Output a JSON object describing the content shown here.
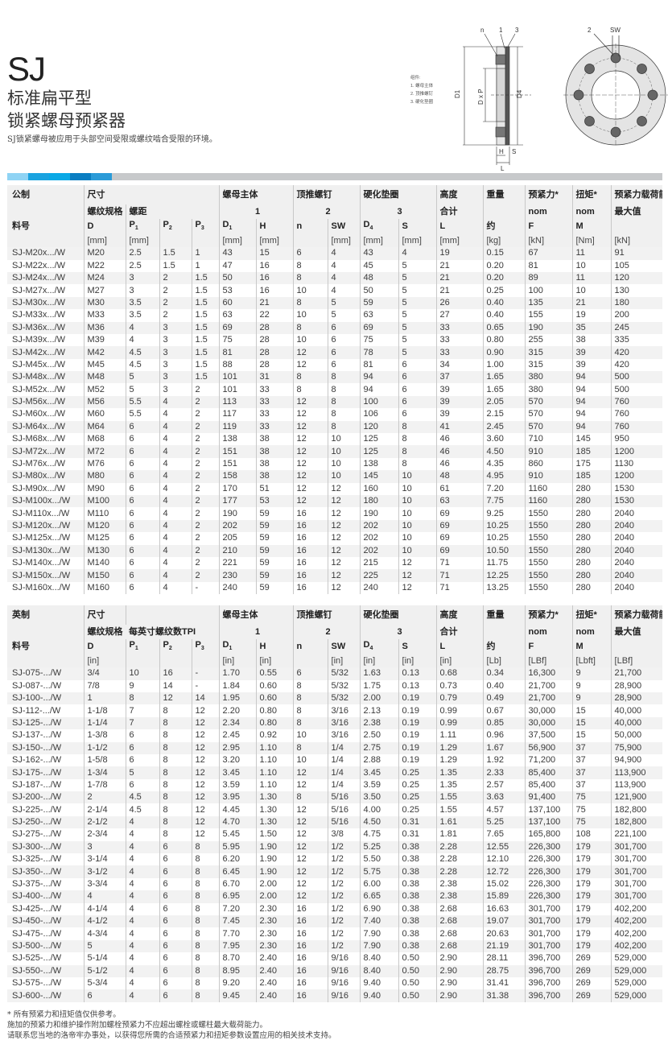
{
  "header": {
    "title": "SJ",
    "subtitle_1": "标准扁平型",
    "subtitle_2": "锁紧螺母预紧器",
    "description": "SJ锁紧螺母被应用于头部空间受限或螺纹啮合受限的环境。"
  },
  "colors": {
    "band": [
      "#8fd3f4",
      "#1aa3e0",
      "#0aa9e6",
      "#0a7ec2",
      "#2b9bd8"
    ],
    "band_rest": "#c7c9cb",
    "header_bg": "#f0f0f0",
    "row_alt": "#f2f2f2"
  },
  "diagram": {
    "legend": [
      "组件:",
      "1. 螺母主体",
      "2. 顶推螺钉",
      "3. 硬化垫圈"
    ],
    "labels": {
      "n": "n",
      "one": "1",
      "three": "3",
      "two": "2",
      "sw": "SW",
      "d1": "D1",
      "dxp": "D x P",
      "d4": "D4",
      "h": "H",
      "s": "S",
      "l": "L"
    }
  },
  "metric": {
    "header": {
      "r1": [
        "公制",
        "尺寸",
        "螺母主体",
        "顶推螺钉",
        "硬化垫圈",
        "高度",
        "重量",
        "预紧力*",
        "扭矩*",
        "预紧力载荷能力*"
      ],
      "r2": [
        "螺纹规格",
        "螺距",
        "1",
        "2",
        "3",
        "合计",
        "nom",
        "nom",
        "最大值"
      ],
      "r3": [
        "料号",
        "D",
        "P1",
        "P2",
        "P3",
        "D1",
        "H",
        "n",
        "SW",
        "D4",
        "S",
        "L",
        "约",
        "F",
        "M",
        ""
      ],
      "r4": [
        "",
        "[mm]",
        "[mm]",
        "",
        "",
        "[mm]",
        "[mm]",
        "",
        "[mm]",
        "[mm]",
        "[mm]",
        "[mm]",
        "[kg]",
        "[kN]",
        "[Nm]",
        "[kN]"
      ]
    },
    "rows": [
      [
        "SJ-M20x.../W",
        "M20",
        "2.5",
        "1.5",
        "1",
        "43",
        "15",
        "6",
        "4",
        "43",
        "4",
        "19",
        "0.15",
        "67",
        "11",
        "91"
      ],
      [
        "SJ-M22x.../W",
        "M22",
        "2.5",
        "1.5",
        "1",
        "47",
        "16",
        "8",
        "4",
        "45",
        "5",
        "21",
        "0.20",
        "81",
        "10",
        "105"
      ],
      [
        "SJ-M24x.../W",
        "M24",
        "3",
        "2",
        "1.5",
        "50",
        "16",
        "8",
        "4",
        "48",
        "5",
        "21",
        "0.20",
        "89",
        "11",
        "120"
      ],
      [
        "SJ-M27x.../W",
        "M27",
        "3",
        "2",
        "1.5",
        "53",
        "16",
        "10",
        "4",
        "50",
        "5",
        "21",
        "0.25",
        "100",
        "10",
        "130"
      ],
      [
        "SJ-M30x.../W",
        "M30",
        "3.5",
        "2",
        "1.5",
        "60",
        "21",
        "8",
        "5",
        "59",
        "5",
        "26",
        "0.40",
        "135",
        "21",
        "180"
      ],
      [
        "SJ-M33x.../W",
        "M33",
        "3.5",
        "2",
        "1.5",
        "63",
        "22",
        "10",
        "5",
        "63",
        "5",
        "27",
        "0.40",
        "155",
        "19",
        "200"
      ],
      [
        "SJ-M36x.../W",
        "M36",
        "4",
        "3",
        "1.5",
        "69",
        "28",
        "8",
        "6",
        "69",
        "5",
        "33",
        "0.65",
        "190",
        "35",
        "245"
      ],
      [
        "SJ-M39x.../W",
        "M39",
        "4",
        "3",
        "1.5",
        "75",
        "28",
        "10",
        "6",
        "75",
        "5",
        "33",
        "0.80",
        "255",
        "38",
        "335"
      ],
      [
        "SJ-M42x.../W",
        "M42",
        "4.5",
        "3",
        "1.5",
        "81",
        "28",
        "12",
        "6",
        "78",
        "5",
        "33",
        "0.90",
        "315",
        "39",
        "420"
      ],
      [
        "SJ-M45x.../W",
        "M45",
        "4.5",
        "3",
        "1.5",
        "88",
        "28",
        "12",
        "6",
        "81",
        "6",
        "34",
        "1.00",
        "315",
        "39",
        "420"
      ],
      [
        "SJ-M48x.../W",
        "M48",
        "5",
        "3",
        "1.5",
        "101",
        "31",
        "8",
        "8",
        "94",
        "6",
        "37",
        "1.65",
        "380",
        "94",
        "500"
      ],
      [
        "SJ-M52x.../W",
        "M52",
        "5",
        "3",
        "2",
        "101",
        "33",
        "8",
        "8",
        "94",
        "6",
        "39",
        "1.65",
        "380",
        "94",
        "500"
      ],
      [
        "SJ-M56x.../W",
        "M56",
        "5.5",
        "4",
        "2",
        "113",
        "33",
        "12",
        "8",
        "100",
        "6",
        "39",
        "2.05",
        "570",
        "94",
        "760"
      ],
      [
        "SJ-M60x.../W",
        "M60",
        "5.5",
        "4",
        "2",
        "117",
        "33",
        "12",
        "8",
        "106",
        "6",
        "39",
        "2.15",
        "570",
        "94",
        "760"
      ],
      [
        "SJ-M64x.../W",
        "M64",
        "6",
        "4",
        "2",
        "119",
        "33",
        "12",
        "8",
        "120",
        "8",
        "41",
        "2.45",
        "570",
        "94",
        "760"
      ],
      [
        "SJ-M68x.../W",
        "M68",
        "6",
        "4",
        "2",
        "138",
        "38",
        "12",
        "10",
        "125",
        "8",
        "46",
        "3.60",
        "710",
        "145",
        "950"
      ],
      [
        "SJ-M72x.../W",
        "M72",
        "6",
        "4",
        "2",
        "151",
        "38",
        "12",
        "10",
        "125",
        "8",
        "46",
        "4.50",
        "910",
        "185",
        "1200"
      ],
      [
        "SJ-M76x.../W",
        "M76",
        "6",
        "4",
        "2",
        "151",
        "38",
        "12",
        "10",
        "138",
        "8",
        "46",
        "4.35",
        "860",
        "175",
        "1130"
      ],
      [
        "SJ-M80x.../W",
        "M80",
        "6",
        "4",
        "2",
        "158",
        "38",
        "12",
        "10",
        "145",
        "10",
        "48",
        "4.95",
        "910",
        "185",
        "1200"
      ],
      [
        "SJ-M90x.../W",
        "M90",
        "6",
        "4",
        "2",
        "170",
        "51",
        "12",
        "12",
        "160",
        "10",
        "61",
        "7.20",
        "1160",
        "280",
        "1530"
      ],
      [
        "SJ-M100x.../W",
        "M100",
        "6",
        "4",
        "2",
        "177",
        "53",
        "12",
        "12",
        "180",
        "10",
        "63",
        "7.75",
        "1160",
        "280",
        "1530"
      ],
      [
        "SJ-M110x.../W",
        "M110",
        "6",
        "4",
        "2",
        "190",
        "59",
        "16",
        "12",
        "190",
        "10",
        "69",
        "9.25",
        "1550",
        "280",
        "2040"
      ],
      [
        "SJ-M120x.../W",
        "M120",
        "6",
        "4",
        "2",
        "202",
        "59",
        "16",
        "12",
        "202",
        "10",
        "69",
        "10.25",
        "1550",
        "280",
        "2040"
      ],
      [
        "SJ-M125x.../W",
        "M125",
        "6",
        "4",
        "2",
        "205",
        "59",
        "16",
        "12",
        "202",
        "10",
        "69",
        "10.25",
        "1550",
        "280",
        "2040"
      ],
      [
        "SJ-M130x.../W",
        "M130",
        "6",
        "4",
        "2",
        "210",
        "59",
        "16",
        "12",
        "202",
        "10",
        "69",
        "10.50",
        "1550",
        "280",
        "2040"
      ],
      [
        "SJ-M140x.../W",
        "M140",
        "6",
        "4",
        "2",
        "221",
        "59",
        "16",
        "12",
        "215",
        "12",
        "71",
        "11.75",
        "1550",
        "280",
        "2040"
      ],
      [
        "SJ-M150x.../W",
        "M150",
        "6",
        "4",
        "2",
        "230",
        "59",
        "16",
        "12",
        "225",
        "12",
        "71",
        "12.25",
        "1550",
        "280",
        "2040"
      ],
      [
        "SJ-M160x.../W",
        "M160",
        "6",
        "4",
        "-",
        "240",
        "59",
        "16",
        "12",
        "240",
        "12",
        "71",
        "13.25",
        "1550",
        "280",
        "2040"
      ]
    ]
  },
  "imperial": {
    "header": {
      "r1": [
        "英制",
        "尺寸",
        "螺母主体",
        "顶推螺钉",
        "硬化垫圈",
        "高度",
        "重量",
        "预紧力*",
        "扭矩*",
        "预紧力载荷能力*"
      ],
      "r2": [
        "螺纹规格",
        "每英寸螺纹数TPI",
        "1",
        "2",
        "3",
        "合计",
        "nom",
        "nom",
        "最大值"
      ],
      "r3": [
        "料号",
        "D",
        "P1",
        "P2",
        "P3",
        "D1",
        "H",
        "n",
        "SW",
        "D4",
        "S",
        "L",
        "约",
        "F",
        "M",
        ""
      ],
      "r4": [
        "",
        "[in]",
        "",
        "",
        "",
        "[in]",
        "[in]",
        "",
        "[in]",
        "[in]",
        "[in]",
        "[in]",
        "[Lb]",
        "[LBf]",
        "[Lbft]",
        "[LBf]"
      ]
    },
    "rows": [
      [
        "SJ-075-.../W",
        "3/4",
        "10",
        "16",
        "-",
        "1.70",
        "0.55",
        "6",
        "5/32",
        "1.63",
        "0.13",
        "0.68",
        "0.34",
        "16,300",
        "9",
        "21,700"
      ],
      [
        "SJ-087-.../W",
        "7/8",
        "9",
        "14",
        "-",
        "1.84",
        "0.60",
        "8",
        "5/32",
        "1.75",
        "0.13",
        "0.73",
        "0.40",
        "21,700",
        "9",
        "28,900"
      ],
      [
        "SJ-100-.../W",
        "1",
        "8",
        "12",
        "14",
        "1.95",
        "0.60",
        "8",
        "5/32",
        "2.00",
        "0.19",
        "0.79",
        "0.49",
        "21,700",
        "9",
        "28,900"
      ],
      [
        "SJ-112-.../W",
        "1-1/8",
        "7",
        "8",
        "12",
        "2.20",
        "0.80",
        "8",
        "3/16",
        "2.13",
        "0.19",
        "0.99",
        "0.67",
        "30,000",
        "15",
        "40,000"
      ],
      [
        "SJ-125-.../W",
        "1-1/4",
        "7",
        "8",
        "12",
        "2.34",
        "0.80",
        "8",
        "3/16",
        "2.38",
        "0.19",
        "0.99",
        "0.85",
        "30,000",
        "15",
        "40,000"
      ],
      [
        "SJ-137-.../W",
        "1-3/8",
        "6",
        "8",
        "12",
        "2.45",
        "0.92",
        "10",
        "3/16",
        "2.50",
        "0.19",
        "1.11",
        "0.96",
        "37,500",
        "15",
        "50,000"
      ],
      [
        "SJ-150-.../W",
        "1-1/2",
        "6",
        "8",
        "12",
        "2.95",
        "1.10",
        "8",
        "1/4",
        "2.75",
        "0.19",
        "1.29",
        "1.67",
        "56,900",
        "37",
        "75,900"
      ],
      [
        "SJ-162-.../W",
        "1-5/8",
        "6",
        "8",
        "12",
        "3.20",
        "1.10",
        "10",
        "1/4",
        "2.88",
        "0.19",
        "1.29",
        "1.92",
        "71,200",
        "37",
        "94,900"
      ],
      [
        "SJ-175-.../W",
        "1-3/4",
        "5",
        "8",
        "12",
        "3.45",
        "1.10",
        "12",
        "1/4",
        "3.45",
        "0.25",
        "1.35",
        "2.33",
        "85,400",
        "37",
        "113,900"
      ],
      [
        "SJ-187-.../W",
        "1-7/8",
        "6",
        "8",
        "12",
        "3.59",
        "1.10",
        "12",
        "1/4",
        "3.59",
        "0.25",
        "1.35",
        "2.57",
        "85,400",
        "37",
        "113,900"
      ],
      [
        "SJ-200-.../W",
        "2",
        "4.5",
        "8",
        "12",
        "3.95",
        "1.30",
        "8",
        "5/16",
        "3.50",
        "0.25",
        "1.55",
        "3.63",
        "91,400",
        "75",
        "121,900"
      ],
      [
        "SJ-225-.../W",
        "2-1/4",
        "4.5",
        "8",
        "12",
        "4.45",
        "1.30",
        "12",
        "5/16",
        "4.00",
        "0.25",
        "1.55",
        "4.57",
        "137,100",
        "75",
        "182,800"
      ],
      [
        "SJ-250-.../W",
        "2-1/2",
        "4",
        "8",
        "12",
        "4.70",
        "1.30",
        "12",
        "5/16",
        "4.50",
        "0.31",
        "1.61",
        "5.25",
        "137,100",
        "75",
        "182,800"
      ],
      [
        "SJ-275-.../W",
        "2-3/4",
        "4",
        "8",
        "12",
        "5.45",
        "1.50",
        "12",
        "3/8",
        "4.75",
        "0.31",
        "1.81",
        "7.65",
        "165,800",
        "108",
        "221,100"
      ],
      [
        "SJ-300-.../W",
        "3",
        "4",
        "6",
        "8",
        "5.95",
        "1.90",
        "12",
        "1/2",
        "5.25",
        "0.38",
        "2.28",
        "12.55",
        "226,300",
        "179",
        "301,700"
      ],
      [
        "SJ-325-.../W",
        "3-1/4",
        "4",
        "6",
        "8",
        "6.20",
        "1.90",
        "12",
        "1/2",
        "5.50",
        "0.38",
        "2.28",
        "12.10",
        "226,300",
        "179",
        "301,700"
      ],
      [
        "SJ-350-.../W",
        "3-1/2",
        "4",
        "6",
        "8",
        "6.45",
        "1.90",
        "12",
        "1/2",
        "5.75",
        "0.38",
        "2.28",
        "12.72",
        "226,300",
        "179",
        "301,700"
      ],
      [
        "SJ-375-.../W",
        "3-3/4",
        "4",
        "6",
        "8",
        "6.70",
        "2.00",
        "12",
        "1/2",
        "6.00",
        "0.38",
        "2.38",
        "15.02",
        "226,300",
        "179",
        "301,700"
      ],
      [
        "SJ-400-.../W",
        "4",
        "4",
        "6",
        "8",
        "6.95",
        "2.00",
        "12",
        "1/2",
        "6.65",
        "0.38",
        "2.38",
        "15.89",
        "226,300",
        "179",
        "301,700"
      ],
      [
        "SJ-425-.../W",
        "4-1/4",
        "4",
        "6",
        "8",
        "7.20",
        "2.30",
        "16",
        "1/2",
        "6.90",
        "0.38",
        "2.68",
        "16.63",
        "301,700",
        "179",
        "402,200"
      ],
      [
        "SJ-450-.../W",
        "4-1/2",
        "4",
        "6",
        "8",
        "7.45",
        "2.30",
        "16",
        "1/2",
        "7.40",
        "0.38",
        "2.68",
        "19.07",
        "301,700",
        "179",
        "402,200"
      ],
      [
        "SJ-475-.../W",
        "4-3/4",
        "4",
        "6",
        "8",
        "7.70",
        "2.30",
        "16",
        "1/2",
        "7.90",
        "0.38",
        "2.68",
        "20.63",
        "301,700",
        "179",
        "402,200"
      ],
      [
        "SJ-500-.../W",
        "5",
        "4",
        "6",
        "8",
        "7.95",
        "2.30",
        "16",
        "1/2",
        "7.90",
        "0.38",
        "2.68",
        "21.19",
        "301,700",
        "179",
        "402,200"
      ],
      [
        "SJ-525-.../W",
        "5-1/4",
        "4",
        "6",
        "8",
        "8.70",
        "2.40",
        "16",
        "9/16",
        "8.40",
        "0.50",
        "2.90",
        "28.11",
        "396,700",
        "269",
        "529,000"
      ],
      [
        "SJ-550-.../W",
        "5-1/2",
        "4",
        "6",
        "8",
        "8.95",
        "2.40",
        "16",
        "9/16",
        "8.40",
        "0.50",
        "2.90",
        "28.75",
        "396,700",
        "269",
        "529,000"
      ],
      [
        "SJ-575-.../W",
        "5-3/4",
        "4",
        "6",
        "8",
        "9.20",
        "2.40",
        "16",
        "9/16",
        "9.40",
        "0.50",
        "2.90",
        "31.41",
        "396,700",
        "269",
        "529,000"
      ],
      [
        "SJ-600-.../W",
        "6",
        "4",
        "6",
        "8",
        "9.45",
        "2.40",
        "16",
        "9/16",
        "9.40",
        "0.50",
        "2.90",
        "31.38",
        "396,700",
        "269",
        "529,000"
      ]
    ]
  },
  "footnotes": [
    "* 所有预紧力和扭矩值仅供参考。",
    "施加的预紧力和维护操作附加螺栓预紧力不应超出螺栓或螺柱最大载荷能力。",
    "请联系您当地的洛帝牢办事处，以获得您所需的合适预紧力和扭矩参数设置应用的相关技术支持。"
  ]
}
